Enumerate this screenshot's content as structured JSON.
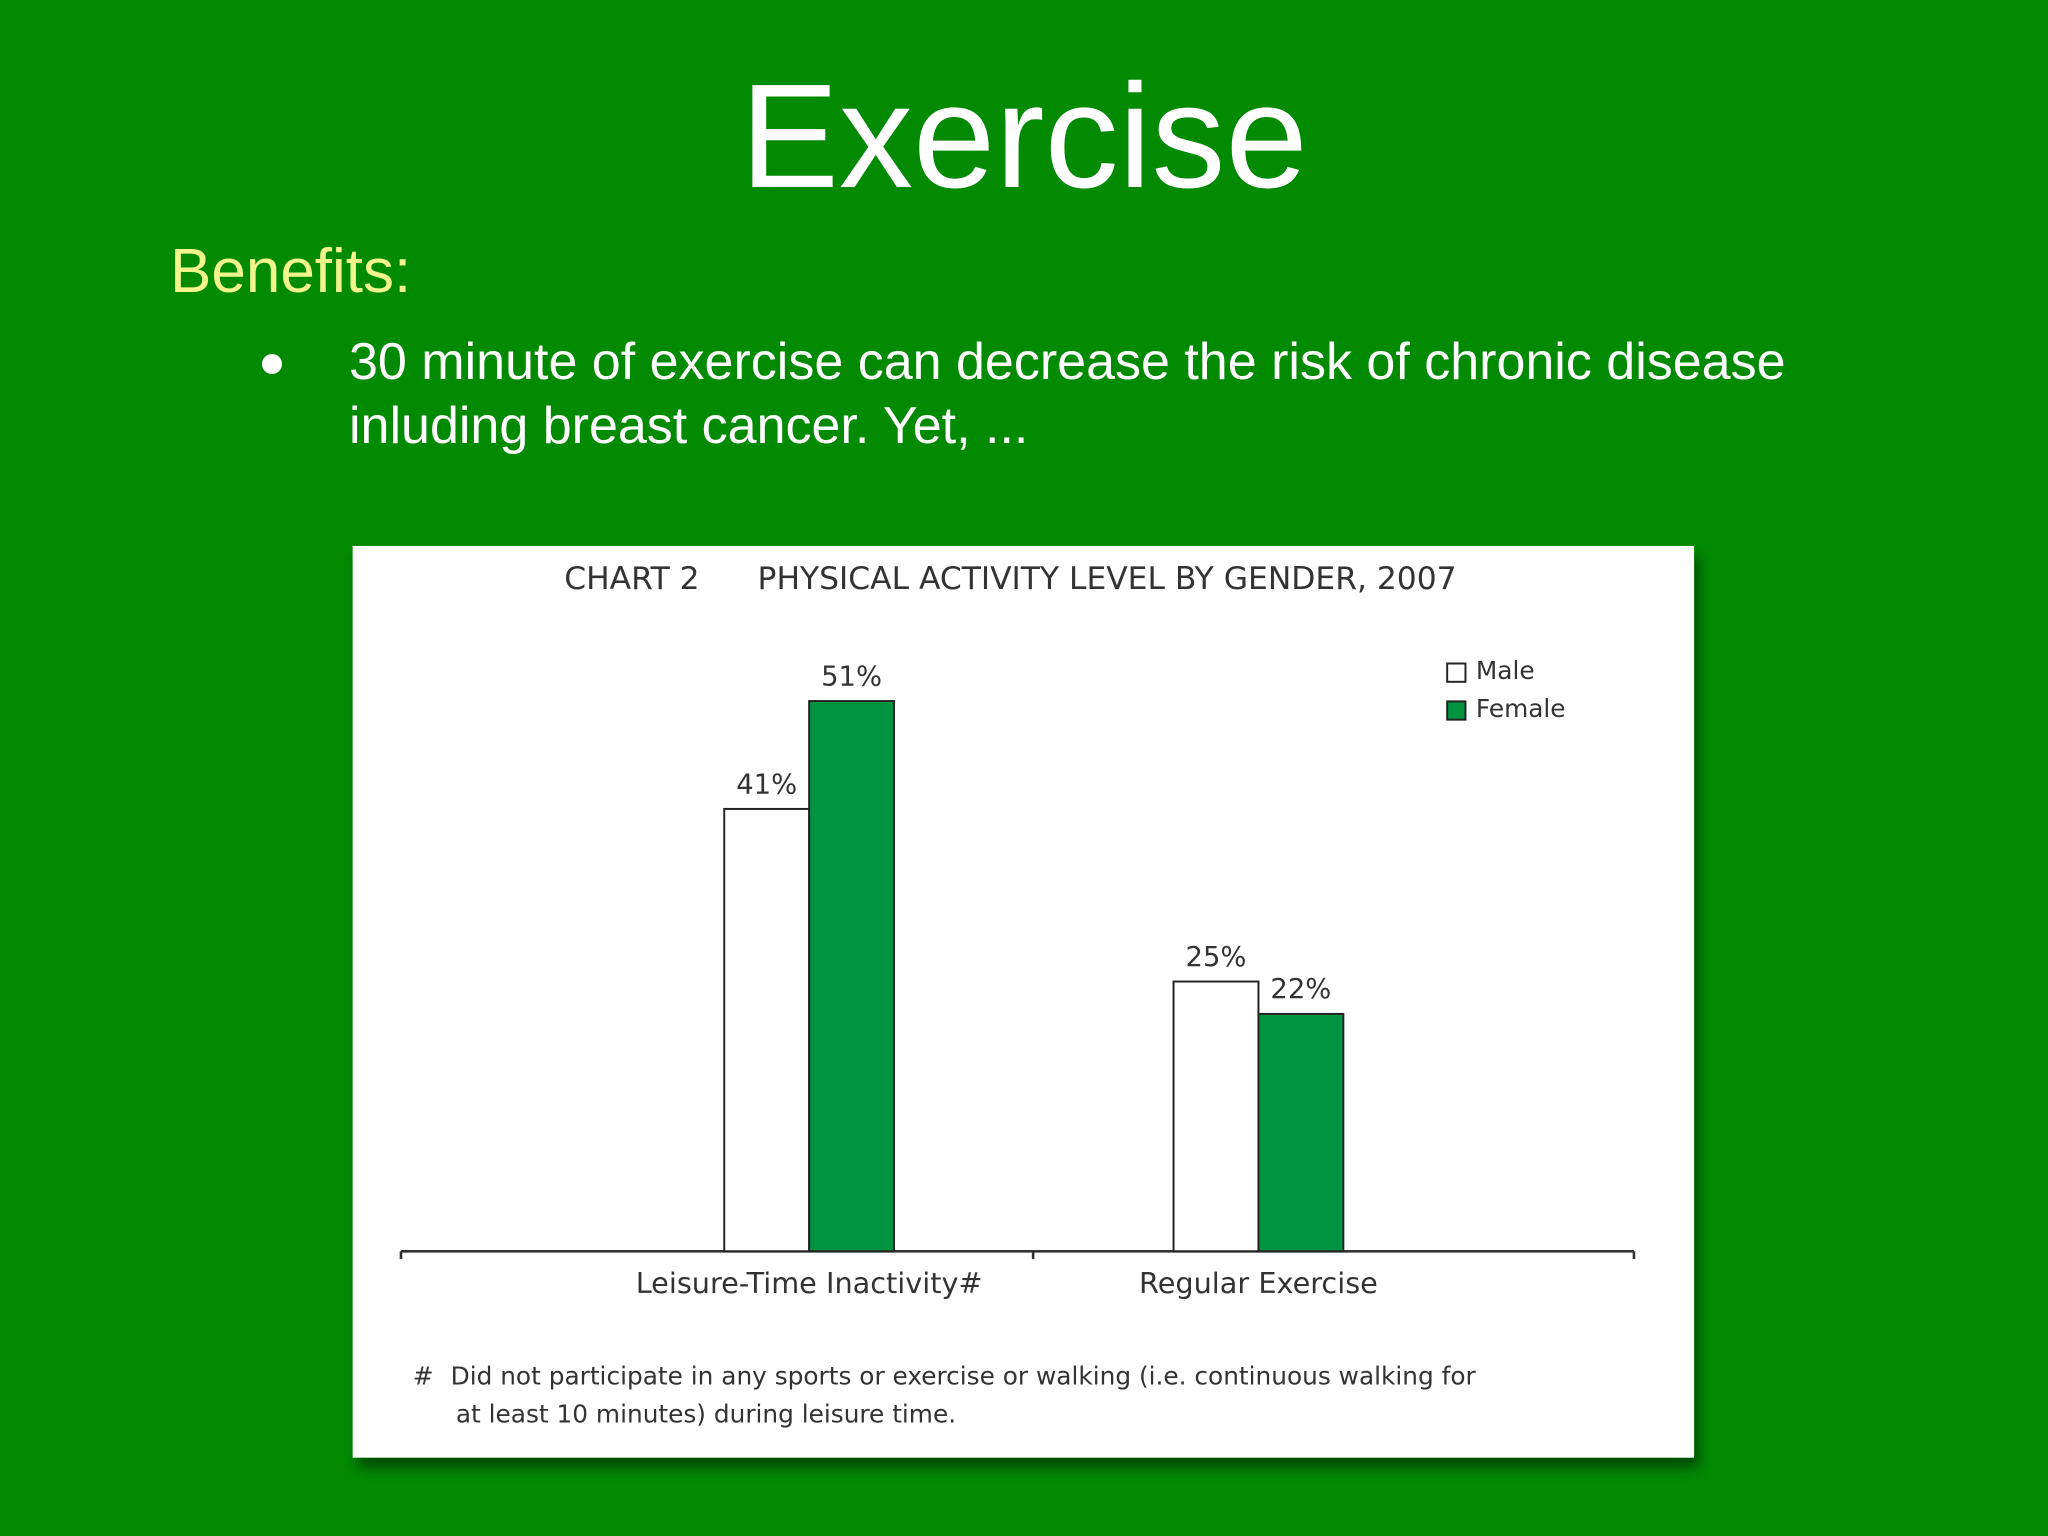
{
  "slide": {
    "title": "Exercise",
    "heading": "Benefits:",
    "bullet": "30 minute of exercise can decrease the risk of chronic disease inluding breast cancer. Yet, ..."
  },
  "chart_data": {
    "type": "bar",
    "label": "CHART 2",
    "title": "PHYSICAL ACTIVITY LEVEL BY GENDER, 2007",
    "categories": [
      "Leisure-Time Inactivity#",
      "Regular Exercise"
    ],
    "series": [
      {
        "name": "Male",
        "color": "#ffffff",
        "values": [
          41,
          25
        ],
        "value_labels": [
          "41%",
          "25%"
        ]
      },
      {
        "name": "Female",
        "color": "#009440",
        "values": [
          51,
          22
        ],
        "value_labels": [
          "51%",
          "22%"
        ]
      }
    ],
    "legend": "top-right",
    "footnote_marker": "#",
    "footnote": [
      "Did not participate in any sports or exercise or walking (i.e. continuous walking for",
      "at least 10 minutes) during leisure time."
    ]
  }
}
